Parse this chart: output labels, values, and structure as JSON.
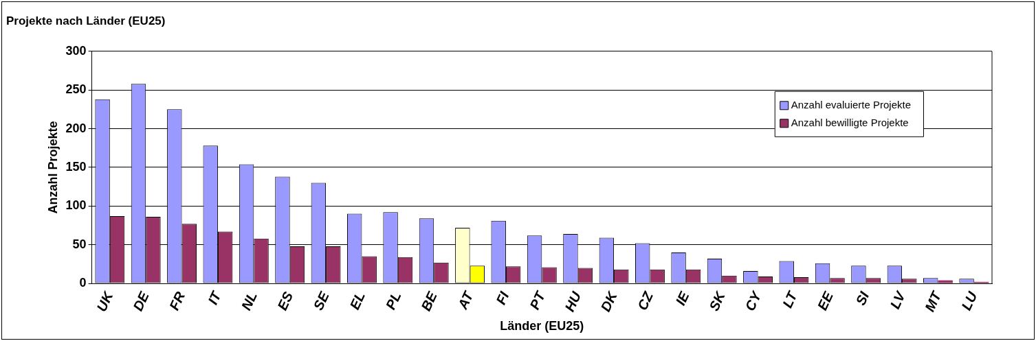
{
  "chart_data": {
    "type": "bar",
    "title": "Projekte nach Länder (EU25)",
    "xlabel": "Länder (EU25)",
    "ylabel": "Anzahl Projekte",
    "categories": [
      "UK",
      "DE",
      "FR",
      "IT",
      "NL",
      "ES",
      "SE",
      "EL",
      "PL",
      "BE",
      "AT",
      "FI",
      "PT",
      "HU",
      "DK",
      "CZ",
      "IE",
      "SK",
      "CY",
      "LT",
      "EE",
      "SI",
      "LV",
      "MT",
      "LU"
    ],
    "series": [
      {
        "name": "Anzahl evaluierte Projekte",
        "color": "#9999ff",
        "colors": [
          "#9999ff",
          "#9999ff",
          "#9999ff",
          "#9999ff",
          "#9999ff",
          "#9999ff",
          "#9999ff",
          "#9999ff",
          "#9999ff",
          "#9999ff",
          "#ffffcc",
          "#9999ff",
          "#9999ff",
          "#9999ff",
          "#9999ff",
          "#9999ff",
          "#9999ff",
          "#9999ff",
          "#9999ff",
          "#9999ff",
          "#9999ff",
          "#9999ff",
          "#9999ff",
          "#9999ff",
          "#9999ff"
        ],
        "values": [
          238,
          258,
          225,
          178,
          154,
          138,
          130,
          90,
          92,
          84,
          72,
          81,
          62,
          64,
          59,
          52,
          40,
          32,
          16,
          29,
          26,
          23,
          23,
          7,
          6
        ]
      },
      {
        "name": "Anzahl bewilligte Projekte",
        "color": "#993366",
        "colors": [
          "#993366",
          "#993366",
          "#993366",
          "#993366",
          "#993366",
          "#993366",
          "#993366",
          "#993366",
          "#993366",
          "#993366",
          "#ffff00",
          "#993366",
          "#993366",
          "#993366",
          "#993366",
          "#993366",
          "#993366",
          "#993366",
          "#993366",
          "#993366",
          "#993366",
          "#993366",
          "#993366",
          "#993366",
          "#993366"
        ],
        "values": [
          87,
          86,
          77,
          67,
          58,
          48,
          48,
          35,
          34,
          27,
          23,
          22,
          21,
          20,
          18,
          18,
          18,
          10,
          9,
          8,
          7,
          7,
          6,
          4,
          2
        ]
      }
    ],
    "ylim": [
      0,
      300
    ],
    "yticks": [
      0,
      50,
      100,
      150,
      200,
      250,
      300
    ],
    "grid": "y",
    "legend": "top right"
  }
}
